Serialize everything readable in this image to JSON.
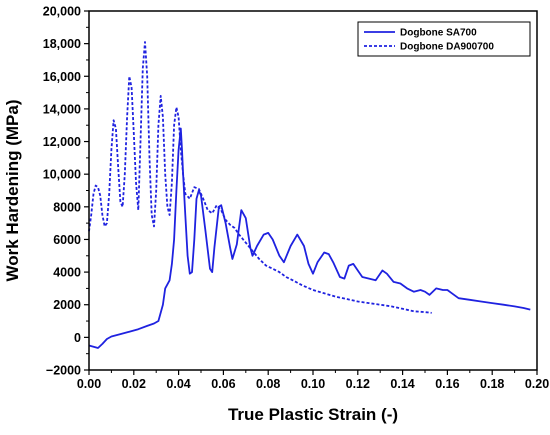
{
  "chart_data": {
    "type": "line",
    "title": "",
    "xlabel": "True Plastic Strain (-)",
    "ylabel": "Work Hardening (MPa)",
    "xlim": [
      0,
      0.2
    ],
    "ylim": [
      -2000,
      20000
    ],
    "x_ticks": [
      0.0,
      0.02,
      0.04,
      0.06,
      0.08,
      0.1,
      0.12,
      0.14,
      0.16,
      0.18,
      0.2
    ],
    "x_tick_labels": [
      "0.00",
      "0.02",
      "0.04",
      "0.06",
      "0.08",
      "0.10",
      "0.12",
      "0.14",
      "0.16",
      "0.18",
      "0.20"
    ],
    "y_ticks": [
      -2000,
      0,
      2000,
      4000,
      6000,
      8000,
      10000,
      12000,
      14000,
      16000,
      18000,
      20000
    ],
    "y_tick_labels": [
      "−2000",
      "0",
      "2000",
      "4000",
      "6000",
      "8000",
      "10,000",
      "12,000",
      "14,000",
      "16,000",
      "18,000",
      "20,000"
    ],
    "grid": false,
    "legend_position": "top-right",
    "series": [
      {
        "name": "Dogbone SA700",
        "color": "#1f22e0",
        "dash": "solid",
        "points": [
          [
            0.0,
            -500
          ],
          [
            0.002,
            -580
          ],
          [
            0.004,
            -650
          ],
          [
            0.006,
            -400
          ],
          [
            0.008,
            -100
          ],
          [
            0.01,
            50
          ],
          [
            0.014,
            200
          ],
          [
            0.018,
            350
          ],
          [
            0.022,
            500
          ],
          [
            0.026,
            700
          ],
          [
            0.029,
            850
          ],
          [
            0.031,
            1000
          ],
          [
            0.033,
            2000
          ],
          [
            0.034,
            3000
          ],
          [
            0.036,
            3500
          ],
          [
            0.037,
            4500
          ],
          [
            0.038,
            6000
          ],
          [
            0.039,
            9000
          ],
          [
            0.04,
            11500
          ],
          [
            0.041,
            12800
          ],
          [
            0.0415,
            11500
          ],
          [
            0.042,
            10000
          ],
          [
            0.043,
            7500
          ],
          [
            0.044,
            5000
          ],
          [
            0.045,
            3900
          ],
          [
            0.046,
            4000
          ],
          [
            0.047,
            6000
          ],
          [
            0.048,
            8500
          ],
          [
            0.049,
            9000
          ],
          [
            0.05,
            8700
          ],
          [
            0.052,
            6500
          ],
          [
            0.054,
            4200
          ],
          [
            0.055,
            4000
          ],
          [
            0.056,
            5500
          ],
          [
            0.058,
            8000
          ],
          [
            0.059,
            8100
          ],
          [
            0.061,
            7000
          ],
          [
            0.063,
            5500
          ],
          [
            0.064,
            4800
          ],
          [
            0.066,
            5700
          ],
          [
            0.068,
            7800
          ],
          [
            0.07,
            7300
          ],
          [
            0.072,
            5500
          ],
          [
            0.073,
            5000
          ],
          [
            0.075,
            5600
          ],
          [
            0.078,
            6300
          ],
          [
            0.08,
            6400
          ],
          [
            0.082,
            6000
          ],
          [
            0.085,
            5000
          ],
          [
            0.087,
            4600
          ],
          [
            0.09,
            5600
          ],
          [
            0.093,
            6300
          ],
          [
            0.096,
            5600
          ],
          [
            0.098,
            4500
          ],
          [
            0.1,
            3900
          ],
          [
            0.102,
            4600
          ],
          [
            0.105,
            5200
          ],
          [
            0.107,
            5100
          ],
          [
            0.109,
            4600
          ],
          [
            0.112,
            3700
          ],
          [
            0.114,
            3600
          ],
          [
            0.116,
            4400
          ],
          [
            0.118,
            4500
          ],
          [
            0.12,
            4100
          ],
          [
            0.122,
            3700
          ],
          [
            0.125,
            3600
          ],
          [
            0.128,
            3500
          ],
          [
            0.131,
            4100
          ],
          [
            0.133,
            3900
          ],
          [
            0.136,
            3400
          ],
          [
            0.139,
            3300
          ],
          [
            0.142,
            3000
          ],
          [
            0.145,
            2800
          ],
          [
            0.148,
            2900
          ],
          [
            0.15,
            2800
          ],
          [
            0.152,
            2600
          ],
          [
            0.155,
            3000
          ],
          [
            0.158,
            2900
          ],
          [
            0.16,
            2900
          ],
          [
            0.162,
            2700
          ],
          [
            0.165,
            2400
          ],
          [
            0.17,
            2300
          ],
          [
            0.175,
            2200
          ],
          [
            0.18,
            2100
          ],
          [
            0.185,
            2000
          ],
          [
            0.19,
            1900
          ],
          [
            0.194,
            1800
          ],
          [
            0.197,
            1700
          ]
        ]
      },
      {
        "name": "Dogbone DA900700",
        "color": "#1f22e0",
        "dash": "dotted",
        "points": [
          [
            0.0,
            6500
          ],
          [
            0.001,
            7500
          ],
          [
            0.002,
            8800
          ],
          [
            0.003,
            9300
          ],
          [
            0.004,
            9200
          ],
          [
            0.005,
            8700
          ],
          [
            0.006,
            7500
          ],
          [
            0.007,
            6800
          ],
          [
            0.008,
            7000
          ],
          [
            0.009,
            8800
          ],
          [
            0.01,
            11500
          ],
          [
            0.011,
            13300
          ],
          [
            0.012,
            12800
          ],
          [
            0.013,
            10500
          ],
          [
            0.014,
            8300
          ],
          [
            0.015,
            8000
          ],
          [
            0.016,
            10000
          ],
          [
            0.017,
            13500
          ],
          [
            0.018,
            16000
          ],
          [
            0.019,
            15300
          ],
          [
            0.02,
            12500
          ],
          [
            0.021,
            9500
          ],
          [
            0.022,
            7800
          ],
          [
            0.023,
            12000
          ],
          [
            0.024,
            16500
          ],
          [
            0.025,
            18100
          ],
          [
            0.026,
            16000
          ],
          [
            0.027,
            11000
          ],
          [
            0.028,
            7500
          ],
          [
            0.029,
            6800
          ],
          [
            0.03,
            9000
          ],
          [
            0.031,
            13000
          ],
          [
            0.032,
            14800
          ],
          [
            0.033,
            13500
          ],
          [
            0.034,
            10000
          ],
          [
            0.035,
            8000
          ],
          [
            0.036,
            7500
          ],
          [
            0.037,
            9500
          ],
          [
            0.038,
            13000
          ],
          [
            0.039,
            14100
          ],
          [
            0.04,
            13500
          ],
          [
            0.041,
            11500
          ],
          [
            0.042,
            10000
          ],
          [
            0.043,
            8800
          ],
          [
            0.045,
            8500
          ],
          [
            0.047,
            9200
          ],
          [
            0.049,
            9100
          ],
          [
            0.051,
            8500
          ],
          [
            0.053,
            7800
          ],
          [
            0.055,
            7600
          ],
          [
            0.057,
            8100
          ],
          [
            0.059,
            7800
          ],
          [
            0.061,
            7200
          ],
          [
            0.063,
            6900
          ],
          [
            0.065,
            6700
          ],
          [
            0.067,
            6300
          ],
          [
            0.07,
            5800
          ],
          [
            0.073,
            5300
          ],
          [
            0.076,
            4800
          ],
          [
            0.079,
            4400
          ],
          [
            0.082,
            4200
          ],
          [
            0.085,
            4000
          ],
          [
            0.088,
            3700
          ],
          [
            0.091,
            3500
          ],
          [
            0.095,
            3200
          ],
          [
            0.1,
            2900
          ],
          [
            0.105,
            2700
          ],
          [
            0.11,
            2500
          ],
          [
            0.115,
            2350
          ],
          [
            0.12,
            2200
          ],
          [
            0.125,
            2100
          ],
          [
            0.13,
            2000
          ],
          [
            0.135,
            1900
          ],
          [
            0.14,
            1750
          ],
          [
            0.145,
            1600
          ],
          [
            0.15,
            1550
          ],
          [
            0.153,
            1500
          ]
        ]
      }
    ]
  }
}
